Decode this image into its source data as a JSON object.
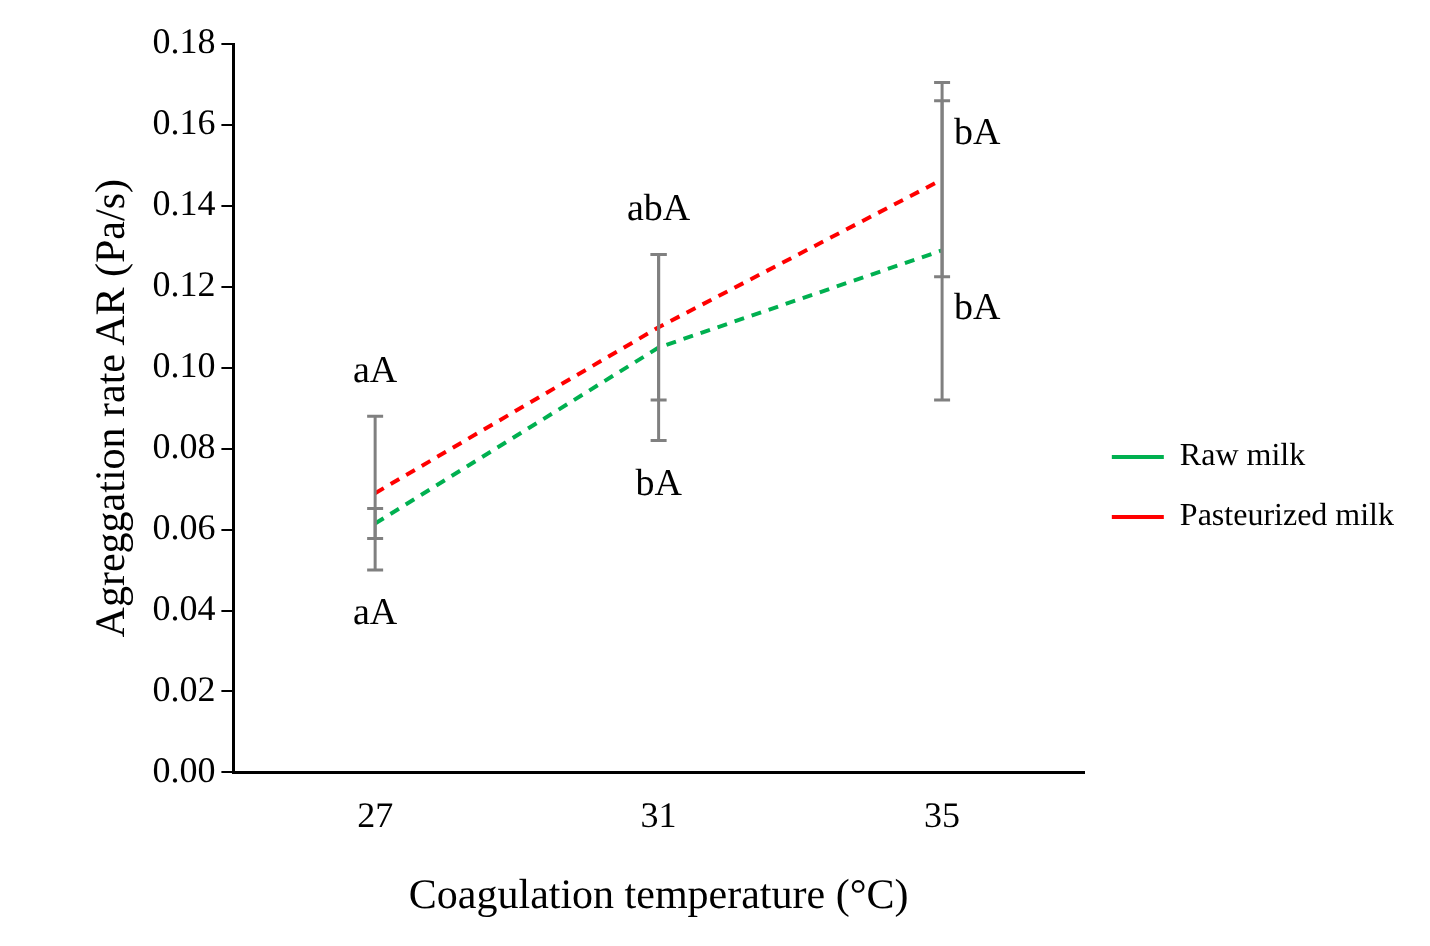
{
  "chart_data": {
    "type": "line",
    "xlabel": "Coagulation temperature (°C)",
    "ylabel": "Agreggation rate AR (Pa/s)",
    "categories": [
      "27",
      "31",
      "35"
    ],
    "series": [
      {
        "name": "Raw milk",
        "color": "#00b050",
        "values": [
          0.0615,
          0.105,
          0.129
        ],
        "errors": [
          0.0037,
          0.023,
          0.037
        ]
      },
      {
        "name": "Pasteurized milk",
        "color": "#ff0000",
        "values": [
          0.069,
          0.11,
          0.1465
        ],
        "errors": [
          0.019,
          0.018,
          0.024
        ]
      }
    ],
    "ylim": [
      0,
      0.18
    ],
    "yticks": [
      {
        "value": 0,
        "label": "0.00"
      },
      {
        "value": 0.02,
        "label": "0.02"
      },
      {
        "value": 0.04,
        "label": "0.04"
      },
      {
        "value": 0.06,
        "label": "0.06"
      },
      {
        "value": 0.08,
        "label": "0.08"
      },
      {
        "value": 0.1,
        "label": "0.10"
      },
      {
        "value": 0.12,
        "label": "0.12"
      },
      {
        "value": 0.14,
        "label": "0.14"
      },
      {
        "value": 0.16,
        "label": "0.16"
      },
      {
        "value": 0.18,
        "label": "0.18"
      }
    ],
    "annotations": [
      "aA",
      "aA",
      "abA",
      "bA",
      "bA",
      "bA"
    ],
    "legend": "right",
    "marker": "none",
    "line_style": "dashed",
    "grid": false
  }
}
